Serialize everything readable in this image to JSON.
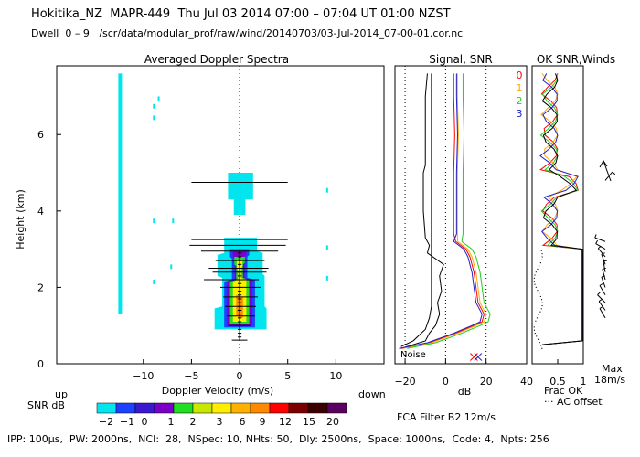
{
  "header": {
    "title_line": "Hokitika_NZ  MAPR-449  Thu Jul 03 2014 07:00 – 07:04 UT 01:00 NZST",
    "subtitle_line": "Dwell  0 – 9   /scr/data/modular_prof/raw/wind/20140703/03-Jul-2014_07-00-01.cor.nc"
  },
  "footer": {
    "params": "IPP: 100μs,  PW: 2000ns,  NCI:  28,  NSpec: 10, NHts: 50,  Dly: 2500ns,  Space: 1000ns,  Code: 4,  Npts: 256"
  },
  "colors": {
    "cyan": "#00e5ee",
    "blue": "#1e40ff",
    "purple": "#7a00c8",
    "green": "#22dd22",
    "yellow": "#ffee00",
    "orange": "#ff8800",
    "red": "#ff0000"
  },
  "chart_data": [
    {
      "id": "doppler",
      "type": "heatmap",
      "title": "Averaged Doppler Spectra",
      "xlabel": "Doppler Velocity (m/s)",
      "ylabel": "Height (km)",
      "xlim": [
        -19,
        15
      ],
      "ylim": [
        0,
        7.8
      ],
      "xticks": [
        -10,
        -5,
        0,
        5,
        10
      ],
      "yticks": [
        0,
        2,
        4,
        6
      ],
      "left_label": "up",
      "right_label": "down",
      "colorbar": {
        "label": "SNR dB",
        "ticks": [
          "-2",
          "-1",
          "0",
          "1",
          "2",
          "3",
          "6",
          "9",
          "12",
          "15",
          "20"
        ],
        "colors": [
          "#00e5ee",
          "#1e40ff",
          "#3a18d0",
          "#7a00c8",
          "#22dd22",
          "#c8e800",
          "#ffee00",
          "#ffb000",
          "#ff8800",
          "#ff0000",
          "#7a0000",
          "#3a0000",
          "#5a0060"
        ]
      },
      "spectral_widths": [
        {
          "h": 0.62,
          "lo": -0.8,
          "hi": 0.8
        },
        {
          "h": 1.0,
          "lo": -1.2,
          "hi": 1.2
        },
        {
          "h": 1.25,
          "lo": -1.3,
          "hi": 1.6
        },
        {
          "h": 1.5,
          "lo": -1.5,
          "hi": 1.7
        },
        {
          "h": 1.75,
          "lo": -1.7,
          "hi": 1.9
        },
        {
          "h": 2.0,
          "lo": -2.0,
          "hi": 2.2
        },
        {
          "h": 2.2,
          "lo": -3.7,
          "hi": 2.0
        },
        {
          "h": 2.4,
          "lo": -2.8,
          "hi": 2.8
        },
        {
          "h": 2.5,
          "lo": -3.2,
          "hi": 3.0
        },
        {
          "h": 2.7,
          "lo": -2.5,
          "hi": 2.6
        },
        {
          "h": 2.95,
          "lo": -4.0,
          "hi": 4.0
        },
        {
          "h": 3.1,
          "lo": -5.2,
          "hi": 4.8
        },
        {
          "h": 3.25,
          "lo": -5.0,
          "hi": 5.0
        },
        {
          "h": 4.75,
          "lo": -5.0,
          "hi": 5.0
        }
      ]
    },
    {
      "id": "signal",
      "type": "line",
      "title": "Signal, SNR",
      "xlabel": "dB",
      "xticks": [
        -20,
        0,
        20,
        40
      ],
      "xlim": [
        -25,
        40
      ],
      "ylim": [
        0,
        7.8
      ],
      "noise_label": "Noise",
      "series": [
        {
          "name": "0",
          "color": "#ff0000",
          "values": []
        },
        {
          "name": "1",
          "color": "#ffaa00",
          "values": []
        },
        {
          "name": "2",
          "color": "#22cc22",
          "values": []
        },
        {
          "name": "3",
          "color": "#2222cc",
          "values": []
        }
      ]
    },
    {
      "id": "winds",
      "type": "line",
      "title": "OK SNR,Winds",
      "xlabel": "Frac OK",
      "xticks": [
        "0.5",
        "1"
      ],
      "legend_note": "··· AC offset",
      "max_label": "Max",
      "max_value": "18m/s",
      "filter_label": "FCA Filter B2 12m/s"
    }
  ]
}
